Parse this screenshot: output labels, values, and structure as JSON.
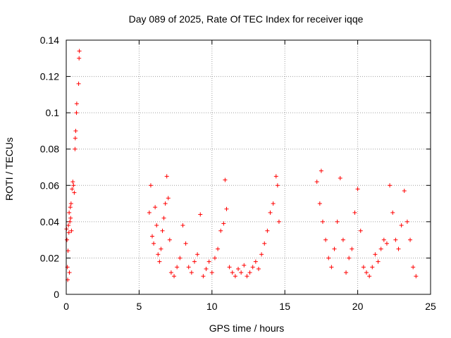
{
  "chart_data": {
    "type": "scatter",
    "title": "Day 089 of 2025, Rate Of TEC Index for receiver iqqe",
    "xlabel": "GPS time / hours",
    "ylabel": "ROTI / TECUs",
    "xlim": [
      0,
      25
    ],
    "ylim": [
      0,
      0.14
    ],
    "x_ticks": [
      0,
      5,
      10,
      15,
      20,
      25
    ],
    "y_ticks": [
      0,
      0.02,
      0.04,
      0.06,
      0.08,
      0.1,
      0.12,
      0.14
    ],
    "x_tick_labels": [
      "0",
      "5",
      "10",
      "15",
      "20",
      "25"
    ],
    "y_tick_labels": [
      "0",
      "0.02",
      "0.04",
      "0.06",
      "0.08",
      "0.1",
      "0.12",
      "0.14"
    ],
    "grid": true,
    "marker": "plus",
    "series_color": "#ff0000",
    "series": [
      {
        "points": [
          [
            0.02,
            0.036
          ],
          [
            0.05,
            0.03
          ],
          [
            0.08,
            0.015
          ],
          [
            0.1,
            0.008
          ],
          [
            0.12,
            0.024
          ],
          [
            0.15,
            0.038
          ],
          [
            0.18,
            0.034
          ],
          [
            0.2,
            0.045
          ],
          [
            0.22,
            0.012
          ],
          [
            0.25,
            0.04
          ],
          [
            0.28,
            0.048
          ],
          [
            0.3,
            0.042
          ],
          [
            0.33,
            0.05
          ],
          [
            0.36,
            0.035
          ],
          [
            0.4,
            0.058
          ],
          [
            0.45,
            0.062
          ],
          [
            0.5,
            0.06
          ],
          [
            0.55,
            0.056
          ],
          [
            0.6,
            0.08
          ],
          [
            0.62,
            0.086
          ],
          [
            0.65,
            0.09
          ],
          [
            0.7,
            0.1
          ],
          [
            0.72,
            0.105
          ],
          [
            0.85,
            0.116
          ],
          [
            0.88,
            0.13
          ],
          [
            0.9,
            0.134
          ],
          [
            5.7,
            0.045
          ],
          [
            5.8,
            0.06
          ],
          [
            5.9,
            0.032
          ],
          [
            6.0,
            0.028
          ],
          [
            6.1,
            0.048
          ],
          [
            6.2,
            0.038
          ],
          [
            6.3,
            0.022
          ],
          [
            6.4,
            0.018
          ],
          [
            6.5,
            0.025
          ],
          [
            6.6,
            0.035
          ],
          [
            6.7,
            0.042
          ],
          [
            6.8,
            0.05
          ],
          [
            6.9,
            0.065
          ],
          [
            7.0,
            0.053
          ],
          [
            7.1,
            0.03
          ],
          [
            7.2,
            0.012
          ],
          [
            7.4,
            0.01
          ],
          [
            7.6,
            0.015
          ],
          [
            7.8,
            0.02
          ],
          [
            8.0,
            0.038
          ],
          [
            8.2,
            0.028
          ],
          [
            8.4,
            0.015
          ],
          [
            8.6,
            0.012
          ],
          [
            8.8,
            0.018
          ],
          [
            9.0,
            0.022
          ],
          [
            9.2,
            0.044
          ],
          [
            9.4,
            0.01
          ],
          [
            9.6,
            0.014
          ],
          [
            9.8,
            0.018
          ],
          [
            10.0,
            0.012
          ],
          [
            10.2,
            0.02
          ],
          [
            10.4,
            0.025
          ],
          [
            10.6,
            0.035
          ],
          [
            10.8,
            0.039
          ],
          [
            10.9,
            0.063
          ],
          [
            11.0,
            0.047
          ],
          [
            11.2,
            0.015
          ],
          [
            11.4,
            0.012
          ],
          [
            11.6,
            0.01
          ],
          [
            11.8,
            0.014
          ],
          [
            12.0,
            0.012
          ],
          [
            12.2,
            0.016
          ],
          [
            12.4,
            0.01
          ],
          [
            12.6,
            0.012
          ],
          [
            12.8,
            0.015
          ],
          [
            13.0,
            0.018
          ],
          [
            13.2,
            0.014
          ],
          [
            13.4,
            0.022
          ],
          [
            13.6,
            0.028
          ],
          [
            13.8,
            0.035
          ],
          [
            14.0,
            0.045
          ],
          [
            14.2,
            0.05
          ],
          [
            14.4,
            0.065
          ],
          [
            14.5,
            0.06
          ],
          [
            14.6,
            0.04
          ],
          [
            17.2,
            0.062
          ],
          [
            17.4,
            0.05
          ],
          [
            17.5,
            0.068
          ],
          [
            17.6,
            0.04
          ],
          [
            17.8,
            0.03
          ],
          [
            18.0,
            0.02
          ],
          [
            18.2,
            0.015
          ],
          [
            18.4,
            0.025
          ],
          [
            18.6,
            0.04
          ],
          [
            18.8,
            0.064
          ],
          [
            19.0,
            0.03
          ],
          [
            19.2,
            0.012
          ],
          [
            19.4,
            0.02
          ],
          [
            19.6,
            0.025
          ],
          [
            19.8,
            0.045
          ],
          [
            20.0,
            0.058
          ],
          [
            20.2,
            0.035
          ],
          [
            20.4,
            0.015
          ],
          [
            20.6,
            0.012
          ],
          [
            20.8,
            0.01
          ],
          [
            21.0,
            0.015
          ],
          [
            21.2,
            0.022
          ],
          [
            21.4,
            0.018
          ],
          [
            21.6,
            0.025
          ],
          [
            21.8,
            0.03
          ],
          [
            22.0,
            0.028
          ],
          [
            22.2,
            0.06
          ],
          [
            22.4,
            0.045
          ],
          [
            22.6,
            0.03
          ],
          [
            22.8,
            0.025
          ],
          [
            23.0,
            0.038
          ],
          [
            23.2,
            0.057
          ],
          [
            23.4,
            0.04
          ],
          [
            23.6,
            0.03
          ],
          [
            23.8,
            0.015
          ],
          [
            24.0,
            0.01
          ]
        ]
      }
    ]
  }
}
